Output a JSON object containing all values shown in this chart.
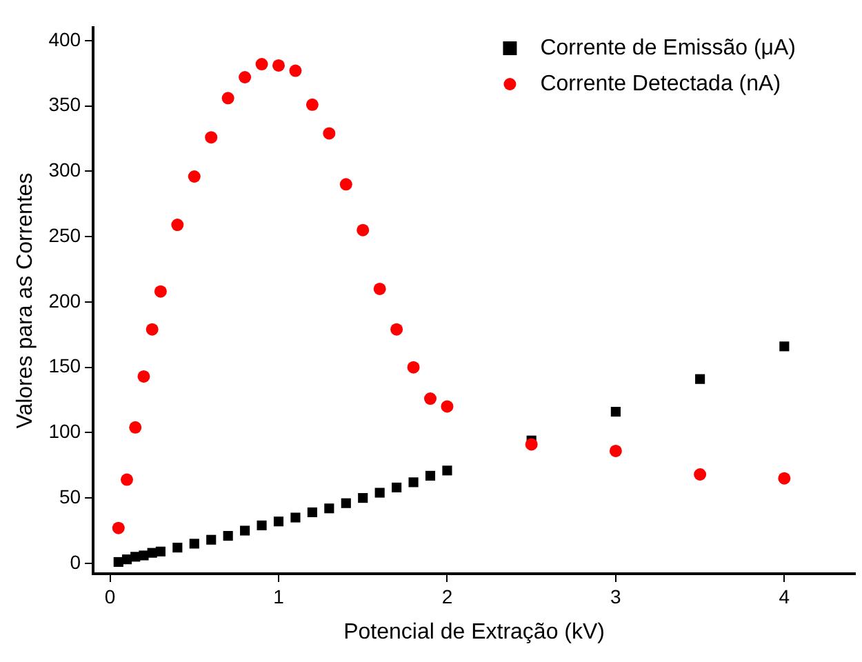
{
  "chart_data": {
    "type": "scatter",
    "xlabel": "Potencial de Extração (kV)",
    "ylabel": "Valores para as Correntes",
    "xlim": [
      -0.1,
      4.42
    ],
    "ylim": [
      -8,
      410
    ],
    "xticks": [
      0,
      1,
      2,
      3,
      4
    ],
    "yticks": [
      0,
      50,
      100,
      150,
      200,
      250,
      300,
      350,
      400
    ],
    "grid": false,
    "legend": "top right",
    "series": [
      {
        "name": "Corrente de Emissão (μA)",
        "color": "#000000",
        "marker": "square",
        "x": [
          0.05,
          0.1,
          0.15,
          0.2,
          0.25,
          0.3,
          0.4,
          0.5,
          0.6,
          0.7,
          0.8,
          0.9,
          1.0,
          1.1,
          1.2,
          1.3,
          1.4,
          1.5,
          1.6,
          1.7,
          1.8,
          1.9,
          2.0,
          2.5,
          3,
          3.5,
          4
        ],
        "values": [
          1,
          3,
          5,
          6,
          8,
          9,
          12,
          15,
          18,
          21,
          25,
          29,
          32,
          35,
          39,
          42,
          46,
          50,
          54,
          58,
          62,
          67,
          71,
          94,
          116,
          141,
          166
        ]
      },
      {
        "name": "Corrente Detectada (nA)",
        "color": "#ff0000",
        "marker": "circle",
        "x": [
          0.05,
          0.1,
          0.15,
          0.2,
          0.25,
          0.3,
          0.4,
          0.5,
          0.6,
          0.7,
          0.8,
          0.9,
          1.0,
          1.1,
          1.2,
          1.3,
          1.4,
          1.5,
          1.6,
          1.7,
          1.8,
          1.9,
          2.0,
          2.5,
          3,
          3.5,
          4
        ],
        "values": [
          27,
          64,
          104,
          143,
          179,
          208,
          259,
          296,
          326,
          356,
          372,
          382,
          381,
          377,
          351,
          329,
          290,
          255,
          210,
          179,
          150,
          126,
          120,
          91,
          86,
          68,
          65
        ]
      }
    ]
  }
}
